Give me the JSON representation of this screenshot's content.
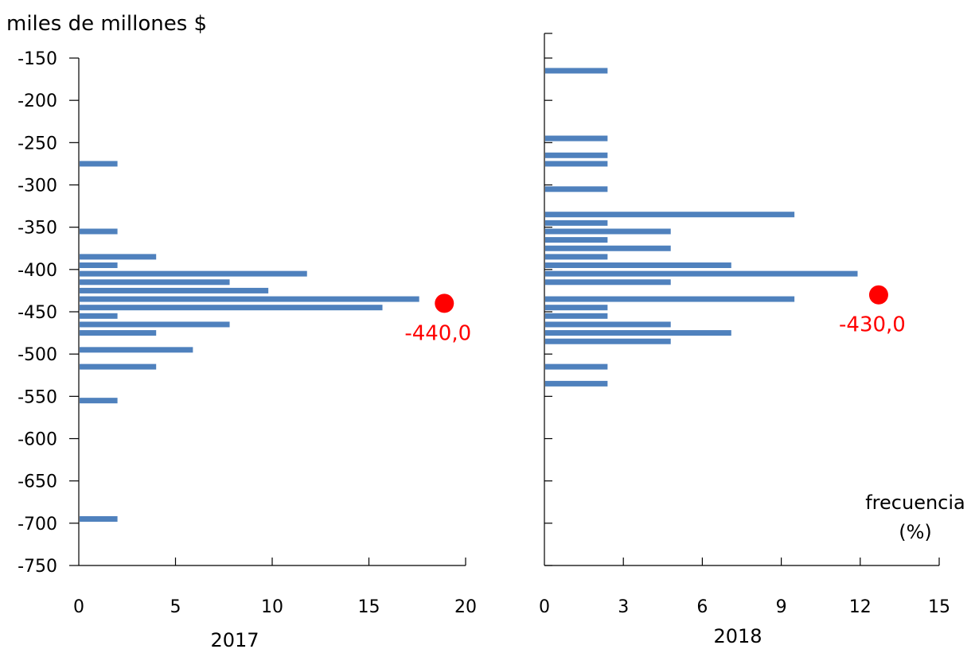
{
  "chart_data": [
    {
      "type": "bar",
      "orientation": "horizontal",
      "unit_label": "miles de millones $",
      "xlabel": "2017",
      "xlim": [
        0,
        20
      ],
      "xticks": [
        "0",
        "5",
        "10",
        "15",
        "20"
      ],
      "ylim": [
        -750,
        -150
      ],
      "yticks": [
        "-150",
        "-200",
        "-250",
        "-300",
        "-350",
        "-400",
        "-450",
        "-500",
        "-550",
        "-600",
        "-650",
        "-700",
        "-750"
      ],
      "bars": [
        {
          "y": -275,
          "value": 2
        },
        {
          "y": -355,
          "value": 2
        },
        {
          "y": -385,
          "value": 4
        },
        {
          "y": -395,
          "value": 2
        },
        {
          "y": -405,
          "value": 11.8
        },
        {
          "y": -415,
          "value": 7.8
        },
        {
          "y": -425,
          "value": 9.8
        },
        {
          "y": -435,
          "value": 17.6
        },
        {
          "y": -445,
          "value": 15.7
        },
        {
          "y": -455,
          "value": 2
        },
        {
          "y": -465,
          "value": 7.8
        },
        {
          "y": -475,
          "value": 4
        },
        {
          "y": -495,
          "value": 5.9
        },
        {
          "y": -515,
          "value": 4
        },
        {
          "y": -555,
          "value": 2
        },
        {
          "y": -695,
          "value": 2
        }
      ],
      "marker": {
        "y": -440,
        "x": 18.9,
        "label": "-440,0",
        "color": "#ff0000"
      },
      "bar_color": "#4f81bd"
    },
    {
      "type": "bar",
      "orientation": "horizontal",
      "xlabel": "2018",
      "xlim": [
        0,
        15
      ],
      "xticks": [
        "0",
        "3",
        "6",
        "9",
        "12",
        "15"
      ],
      "ylim": [
        -750,
        -150
      ],
      "bars": [
        {
          "y": -165,
          "value": 2.4
        },
        {
          "y": -245,
          "value": 2.4
        },
        {
          "y": -265,
          "value": 2.4
        },
        {
          "y": -275,
          "value": 2.4
        },
        {
          "y": -305,
          "value": 2.4
        },
        {
          "y": -335,
          "value": 9.5
        },
        {
          "y": -345,
          "value": 2.4
        },
        {
          "y": -355,
          "value": 4.8
        },
        {
          "y": -365,
          "value": 2.4
        },
        {
          "y": -375,
          "value": 4.8
        },
        {
          "y": -385,
          "value": 2.4
        },
        {
          "y": -395,
          "value": 7.1
        },
        {
          "y": -405,
          "value": 11.9
        },
        {
          "y": -415,
          "value": 4.8
        },
        {
          "y": -435,
          "value": 9.5
        },
        {
          "y": -445,
          "value": 2.4
        },
        {
          "y": -455,
          "value": 2.4
        },
        {
          "y": -465,
          "value": 4.8
        },
        {
          "y": -475,
          "value": 7.1
        },
        {
          "y": -485,
          "value": 4.8
        },
        {
          "y": -515,
          "value": 2.4
        },
        {
          "y": -535,
          "value": 2.4
        }
      ],
      "marker": {
        "y": -430,
        "x": 12.7,
        "label": "-430,0",
        "color": "#ff0000"
      },
      "bar_color": "#4f81bd",
      "frequency_label": "frecuencia",
      "frequency_unit": "(%)"
    }
  ]
}
